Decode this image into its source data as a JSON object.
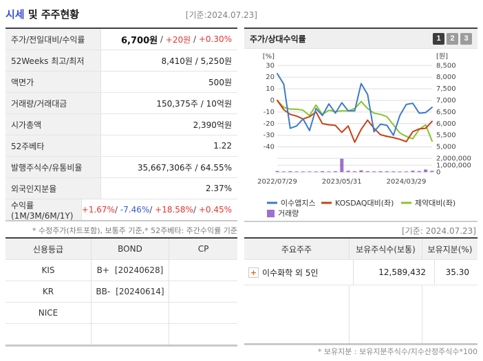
{
  "header": {
    "title_accent": "시세",
    "title_rest": " 및 주주현황",
    "as_of": "[기준:2024.07.23]"
  },
  "colors": {
    "up_red": "#e8332e",
    "down_blue": "#3558d4",
    "title_accent_blue": "#3a4ed2",
    "series_blue": "#3b7ac9",
    "series_red": "#cc3e14",
    "series_green": "#89c32e",
    "volume_purple": "#9d6fd0",
    "active_button": "#3d3d3d",
    "inactive_button": "#9c9c9c"
  },
  "quote": {
    "rows": [
      {
        "label": "주가/전일대비/수익률"
      },
      {
        "label": "52Weeks 최고/최저",
        "value": "8,410원 / 5,250원"
      },
      {
        "label": "액면가",
        "value": "500원"
      },
      {
        "label": "거래량/거래대금",
        "value": "150,375주 / 10억원"
      },
      {
        "label": "시가총액",
        "value": "2,390억원"
      },
      {
        "label": "52주베타",
        "value": "1.22"
      },
      {
        "label": "발행주식수/유통비율",
        "value": "35,667,306주 / 64.55%"
      },
      {
        "label": "외국인지분율",
        "value": "2.37%"
      },
      {
        "label": "수익률 (1M/3M/6M/1Y)"
      }
    ],
    "price": {
      "current": "6,700원",
      "sep": " / ",
      "change": "+20원",
      "change_pct": "+0.30%"
    },
    "returns": {
      "m1": "+1.67%",
      "m3": "-7.46%",
      "m6": "+18.58%",
      "y1": "+0.45%",
      "sep": "/ "
    },
    "footnote": "* 수정주가(차트포함), 보통주 기준,* 52주베타: 주간수익률 기준"
  },
  "chart": {
    "title": "주가/상대수익률",
    "buttons": [
      "1",
      "2",
      "3"
    ],
    "active_button": "1",
    "as_of": "[기준: 2024.07.23]"
  },
  "chart_data": {
    "type": "line",
    "title": "주가/상대수익률",
    "n_points": 25,
    "x_labels_shown": [
      "2022/07/29",
      "2023/05/31",
      "2024/03/29"
    ],
    "x_label_positions": [
      0,
      10,
      20
    ],
    "left_axis": {
      "label": "[%]",
      "ticks": [
        30,
        20,
        10,
        0,
        -10,
        -20,
        -30,
        -40
      ],
      "min": -40,
      "max": 30
    },
    "right_axis": {
      "label": "[원]",
      "ticks": [
        8500,
        8000,
        7500,
        7000,
        6500,
        6000,
        5500,
        5000
      ],
      "min": 5000,
      "max": 8500
    },
    "volume_axis": {
      "ticks": [
        2000000,
        1000000,
        0
      ],
      "max": 2000000
    },
    "series": [
      {
        "name": "이수앱지스",
        "axis": "right",
        "unit": "원",
        "color": "#3b7ac9",
        "values": [
          8150,
          7700,
          5800,
          5900,
          6200,
          5700,
          6650,
          6350,
          6850,
          6450,
          6900,
          6550,
          6550,
          7725,
          7250,
          5650,
          5975,
          5925,
          5500,
          6350,
          6825,
          6875,
          6450,
          6475,
          6700
        ]
      },
      {
        "name": "KOSDAQ대비(좌)",
        "axis": "left",
        "unit": "%",
        "color": "#cc3e14",
        "values": [
          0,
          -8,
          -12,
          -13.5,
          -16,
          -14,
          -10,
          -20,
          -21,
          -21.5,
          -27.5,
          -22,
          -36,
          -25,
          -17,
          -24,
          -29.5,
          -31,
          -32,
          -33.5,
          -35.5,
          -27,
          -24.5,
          -24,
          -18
        ]
      },
      {
        "name": "제약대비(좌)",
        "axis": "left",
        "unit": "%",
        "color": "#89c32e",
        "values": [
          0,
          -6,
          -7.5,
          -7.5,
          -8.5,
          -13,
          -4,
          -12,
          -8.5,
          -9.5,
          -9,
          -9,
          -7,
          -1,
          -7,
          -11,
          -12,
          -14,
          -21,
          -28,
          -31,
          -33,
          -25,
          -21,
          -35
        ]
      }
    ],
    "volume": {
      "name": "거래량",
      "color": "#9d6fd0",
      "values": [
        160000,
        90000,
        130000,
        70000,
        60000,
        80000,
        100000,
        140000,
        90000,
        130000,
        1950000,
        200000,
        130000,
        260000,
        140000,
        110000,
        130000,
        120000,
        110000,
        90000,
        80000,
        210000,
        160000,
        380000,
        190000
      ]
    }
  },
  "credit": {
    "headers": [
      "신용등급",
      "BOND",
      "CP"
    ],
    "rows": [
      {
        "agency": "KIS",
        "bond_grade": "B+",
        "bond_date": "[20240628]",
        "cp": ""
      },
      {
        "agency": "KR",
        "bond_grade": "BB-",
        "bond_date": "[20240614]",
        "cp": ""
      },
      {
        "agency": "NICE",
        "bond_grade": "",
        "bond_date": "",
        "cp": ""
      },
      {
        "agency": "",
        "bond_grade": "",
        "bond_date": "",
        "cp": ""
      }
    ]
  },
  "holders": {
    "headers": [
      "주요주주",
      "보유주식수(보통)",
      "보유지분(%)"
    ],
    "plus_glyph": "+",
    "rows": [
      {
        "name": "이수화학 외 5인",
        "shares": "12,589,432",
        "ratio": "35.30"
      }
    ],
    "footnote": "* 보유지분 : 보유지분주식수/지수산정주식수*100"
  }
}
